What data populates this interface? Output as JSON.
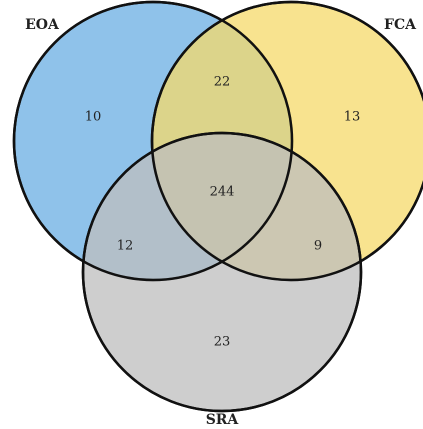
{
  "chart_data": {
    "type": "venn",
    "series": [
      {
        "name": "EOA",
        "color": "#6aaee3"
      },
      {
        "name": "FCA",
        "color": "#f5d96a"
      },
      {
        "name": "SRA",
        "color": "#bdbdbd"
      }
    ],
    "values": [
      10,
      22,
      13,
      244,
      12,
      9,
      23
    ]
  }
}
